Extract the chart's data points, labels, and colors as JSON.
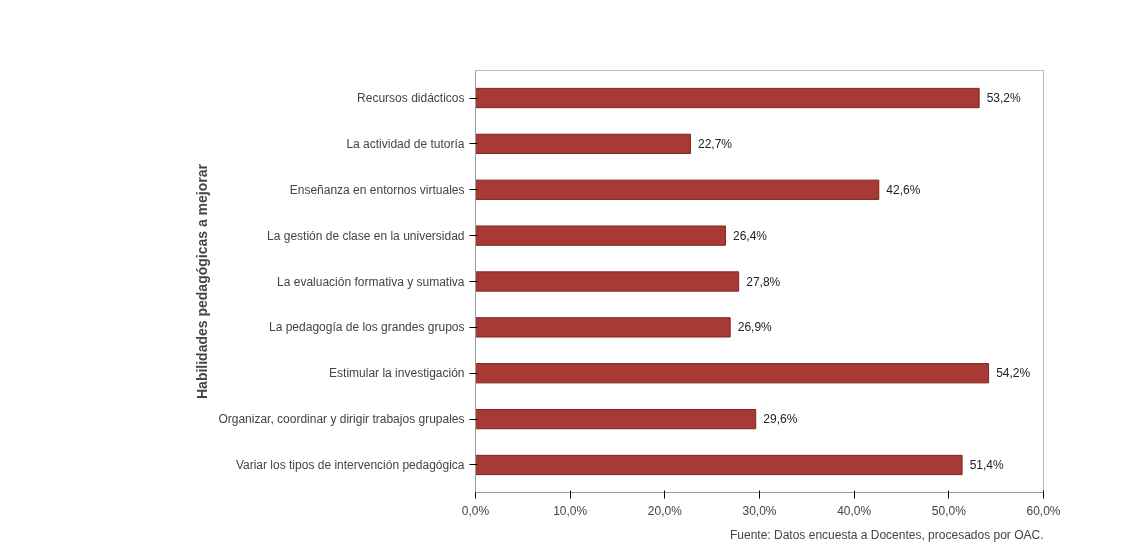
{
  "chart_data": {
    "type": "bar",
    "orientation": "horizontal",
    "ylabel": "Habilidades pedagógicas a mejorar",
    "categories": [
      "Recursos didácticos",
      "La actividad de tutoría",
      "Enseñanza en entornos virtuales",
      "La gestión de clase en la universidad",
      "La evaluación formativa y sumativa",
      "La pedagogía de los grandes grupos",
      "Estimular la investigación",
      "Organizar, coordinar y dirigir trabajos grupales",
      "Variar los tipos de intervención pedagógica"
    ],
    "values": [
      53.2,
      22.7,
      42.6,
      26.4,
      27.8,
      26.9,
      54.2,
      29.6,
      51.4
    ],
    "value_labels": [
      "53,2%",
      "22,7%",
      "42,6%",
      "26,4%",
      "27,8%",
      "26,9%",
      "54,2%",
      "29,6%",
      "51,4%"
    ],
    "color": "#a83a35",
    "xlim": [
      0,
      60
    ],
    "xticks": [
      {
        "value": 0,
        "label": "0,0%"
      },
      {
        "value": 10,
        "label": "10,0%"
      },
      {
        "value": 20,
        "label": "20,0%"
      },
      {
        "value": 30,
        "label": "30,0%"
      },
      {
        "value": 40,
        "label": "40,0%"
      },
      {
        "value": 50,
        "label": "50,0%"
      },
      {
        "value": 60,
        "label": "60,0%"
      }
    ],
    "annotations": [
      "Fuente: Datos encuesta a Docentes, procesados por OAC."
    ]
  }
}
